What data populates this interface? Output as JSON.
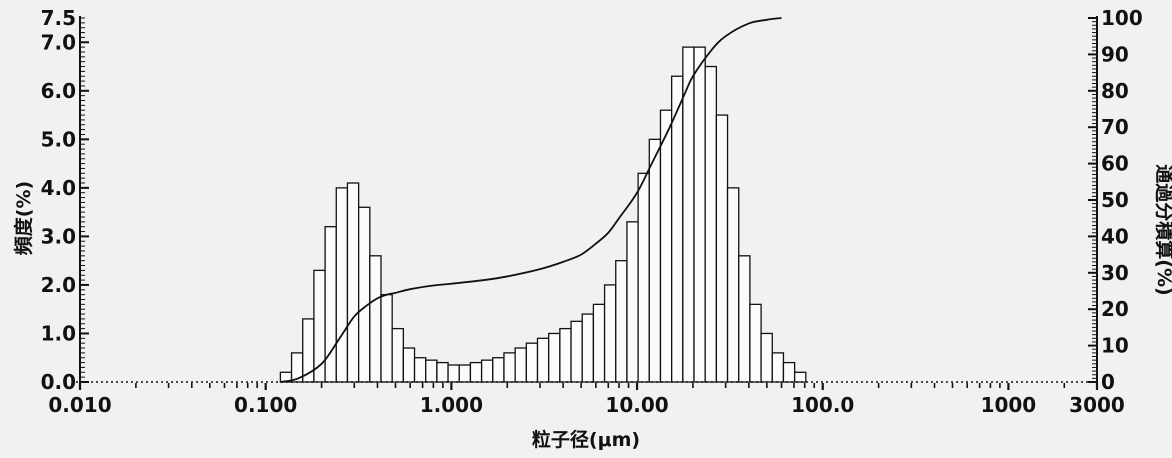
{
  "chart_data": {
    "type": "bar",
    "xlabel": "粒子径(μm)",
    "ylabel": "頻度(%)",
    "y2label": "通過分積算(%)",
    "xscale": "log",
    "xlim": [
      0.01,
      3000
    ],
    "ylim": [
      0,
      7.5
    ],
    "y2lim": [
      0,
      100
    ],
    "grid": false,
    "x_ticks": [
      {
        "value": 0.01,
        "label": "0.010"
      },
      {
        "value": 0.1,
        "label": "0.100"
      },
      {
        "value": 1,
        "label": "1.000"
      },
      {
        "value": 10,
        "label": "10.00"
      },
      {
        "value": 100,
        "label": "100.0"
      },
      {
        "value": 1000,
        "label": "1000"
      },
      {
        "value": 3000,
        "label": "3000"
      }
    ],
    "y_ticks": [
      {
        "value": 0,
        "label": "0.0"
      },
      {
        "value": 1,
        "label": "1.0"
      },
      {
        "value": 2,
        "label": "2.0"
      },
      {
        "value": 3,
        "label": "3.0"
      },
      {
        "value": 4,
        "label": "4.0"
      },
      {
        "value": 5,
        "label": "5.0"
      },
      {
        "value": 6,
        "label": "6.0"
      },
      {
        "value": 7,
        "label": "7.0"
      },
      {
        "value": 7.5,
        "label": "7.5"
      }
    ],
    "y2_ticks": [
      {
        "value": 0,
        "label": "0"
      },
      {
        "value": 10,
        "label": "10"
      },
      {
        "value": 20,
        "label": "20"
      },
      {
        "value": 30,
        "label": "30"
      },
      {
        "value": 40,
        "label": "40"
      },
      {
        "value": 50,
        "label": "50"
      },
      {
        "value": 60,
        "label": "60"
      },
      {
        "value": 70,
        "label": "70"
      },
      {
        "value": 80,
        "label": "80"
      },
      {
        "value": 90,
        "label": "90"
      },
      {
        "value": 100,
        "label": "100"
      }
    ],
    "bins": {
      "edges_start": 0.12,
      "ratio": 1.1487,
      "count": 47
    },
    "series": [
      {
        "kind": "bar",
        "axis": "left",
        "values": [
          0.2,
          0.6,
          1.3,
          2.3,
          3.2,
          4.0,
          4.1,
          3.6,
          2.6,
          1.8,
          1.1,
          0.7,
          0.5,
          0.45,
          0.4,
          0.35,
          0.35,
          0.4,
          0.45,
          0.5,
          0.6,
          0.7,
          0.8,
          0.9,
          1.0,
          1.1,
          1.25,
          1.4,
          1.6,
          2.0,
          2.5,
          3.3,
          4.3,
          5.0,
          5.6,
          6.3,
          6.9,
          6.9,
          6.5,
          5.5,
          4.0,
          2.6,
          1.6,
          1.0,
          0.6,
          0.4,
          0.2
        ]
      },
      {
        "kind": "line",
        "axis": "right",
        "x": [
          0.12,
          0.15,
          0.2,
          0.25,
          0.3,
          0.35,
          0.4,
          0.45,
          0.5,
          0.6,
          0.8,
          1.0,
          1.5,
          2.0,
          3.0,
          4.0,
          5.0,
          6.0,
          7.0,
          8.0,
          10.0,
          12.0,
          15.0,
          18.0,
          20.0,
          25.0,
          30.0,
          40.0,
          50.0,
          60.0
        ],
        "values": [
          0,
          1,
          5,
          12,
          18,
          21,
          23,
          24,
          24.5,
          25.5,
          26.5,
          27,
          28,
          29,
          31,
          33,
          35,
          38,
          41,
          45,
          52,
          60,
          70,
          79,
          84,
          91,
          95,
          98.5,
          99.5,
          100
        ]
      }
    ]
  }
}
